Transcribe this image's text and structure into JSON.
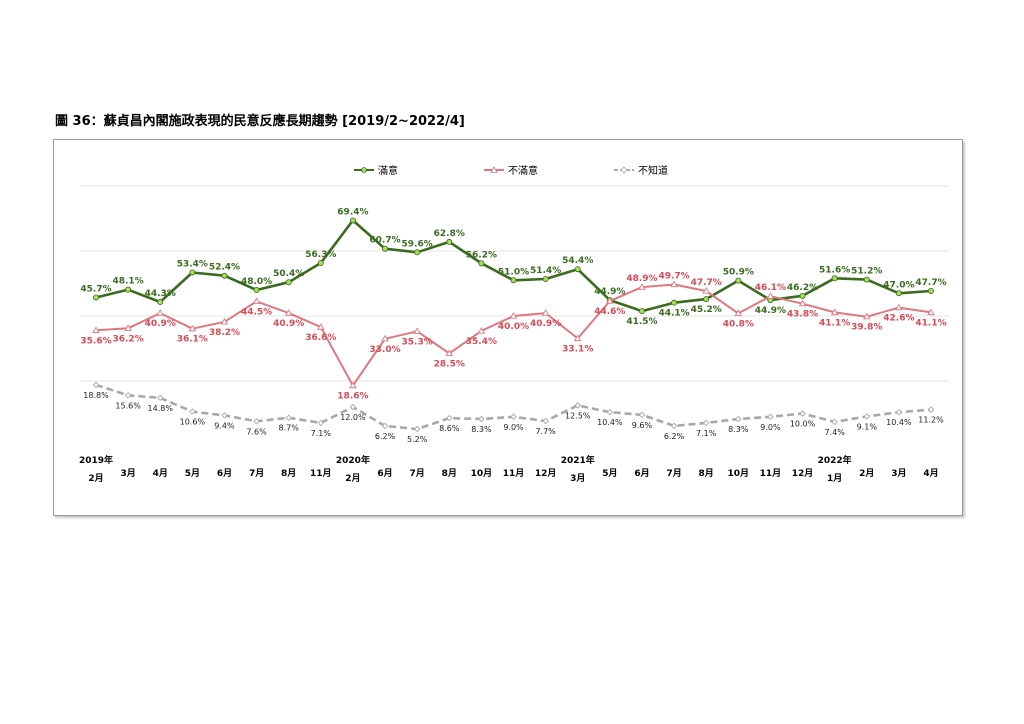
{
  "figure": {
    "title": "圖 36：蘇貞昌內閣施政表現的民意反應長期趨勢 [2019/2~2022/4]"
  },
  "chart_data": {
    "type": "line",
    "title": "圖 36：蘇貞昌內閣施政表現的民意反應長期趨勢 [2019/2~2022/4]",
    "legend_position": "top",
    "grid": "horizontal",
    "ylim": [
      0,
      80
    ],
    "categories": [
      {
        "year": "2019年",
        "month": "2月"
      },
      {
        "year": "",
        "month": "3月"
      },
      {
        "year": "",
        "month": "4月"
      },
      {
        "year": "",
        "month": "5月"
      },
      {
        "year": "",
        "month": "6月"
      },
      {
        "year": "",
        "month": "7月"
      },
      {
        "year": "",
        "month": "8月"
      },
      {
        "year": "",
        "month": "11月"
      },
      {
        "year": "2020年",
        "month": "2月"
      },
      {
        "year": "",
        "month": "6月"
      },
      {
        "year": "",
        "month": "7月"
      },
      {
        "year": "",
        "month": "8月"
      },
      {
        "year": "",
        "month": "10月"
      },
      {
        "year": "",
        "month": "11月"
      },
      {
        "year": "",
        "month": "12月"
      },
      {
        "year": "2021年",
        "month": "3月"
      },
      {
        "year": "",
        "month": "5月"
      },
      {
        "year": "",
        "month": "6月"
      },
      {
        "year": "",
        "month": "7月"
      },
      {
        "year": "",
        "month": "8月"
      },
      {
        "year": "",
        "month": "10月"
      },
      {
        "year": "",
        "month": "11月"
      },
      {
        "year": "",
        "month": "12月"
      },
      {
        "year": "2022年",
        "month": "1月"
      },
      {
        "year": "",
        "month": "2月"
      },
      {
        "year": "",
        "month": "3月"
      },
      {
        "year": "",
        "month": "4月"
      }
    ],
    "series": [
      {
        "name": "滿意",
        "color": "#3a6b1f",
        "marker_color": "#a6e05a",
        "style": "solid",
        "values": [
          45.7,
          48.1,
          44.3,
          53.4,
          52.4,
          48.0,
          50.4,
          56.3,
          69.4,
          60.7,
          59.6,
          62.8,
          56.2,
          51.0,
          51.4,
          54.4,
          44.9,
          41.5,
          44.1,
          45.2,
          50.9,
          44.9,
          46.2,
          51.6,
          51.2,
          47.0,
          47.7
        ],
        "labels": [
          "45.7%",
          "48.1%",
          "44.3%",
          "53.4%",
          "52.4%",
          "48.0%",
          "50.4%",
          "56.3%",
          "69.4%",
          "60.7%",
          "59.6%",
          "62.8%",
          "56.2%",
          "51.0%",
          "51.4%",
          "54.4%",
          "44.9%",
          "41.5%",
          "44.1%",
          "45.2%",
          "50.9%",
          "44.9%",
          "46.2%",
          "51.6%",
          "51.2%",
          "47.0%",
          "47.7%"
        ]
      },
      {
        "name": "不滿意",
        "color": "#e0777f",
        "label_color": "#d84a55",
        "style": "solid",
        "values": [
          35.6,
          36.2,
          40.9,
          36.1,
          38.2,
          44.5,
          40.9,
          36.6,
          18.6,
          33.0,
          35.3,
          28.5,
          35.4,
          40.0,
          40.9,
          33.1,
          44.6,
          48.9,
          49.7,
          47.7,
          40.8,
          46.1,
          43.8,
          41.1,
          39.8,
          42.6,
          41.1
        ],
        "labels": [
          "35.6%",
          "36.2%",
          "40.9%",
          "36.1%",
          "38.2%",
          "44.5%",
          "40.9%",
          "36.6%",
          "18.6%",
          "33.0%",
          "35.3%",
          "28.5%",
          "35.4%",
          "40.0%",
          "40.9%",
          "33.1%",
          "44.6%",
          "48.9%",
          "49.7%",
          "47.7%",
          "40.8%",
          "46.1%",
          "43.8%",
          "41.1%",
          "39.8%",
          "42.6%",
          "41.1%"
        ]
      },
      {
        "name": "不知道",
        "color": "#a8a8a8",
        "style": "dashed",
        "values": [
          18.8,
          15.6,
          14.8,
          10.6,
          9.4,
          7.6,
          8.7,
          7.1,
          12.0,
          6.2,
          5.2,
          8.6,
          8.3,
          9.0,
          7.7,
          12.5,
          10.4,
          9.6,
          6.2,
          7.1,
          8.3,
          9.0,
          10.0,
          7.4,
          9.1,
          10.4,
          11.2
        ],
        "labels": [
          "18.8%",
          "15.6%",
          "14.8%",
          "10.6%",
          "9.4%",
          "7.6%",
          "8.7%",
          "7.1%",
          "12.0%",
          "6.2%",
          "5.2%",
          "8.6%",
          "8.3%",
          "9.0%",
          "7.7%",
          "12.5%",
          "10.4%",
          "9.6%",
          "6.2%",
          "7.1%",
          "8.3%",
          "9.0%",
          "10.0%",
          "7.4%",
          "9.1%",
          "10.4%",
          "11.2%"
        ]
      }
    ]
  }
}
